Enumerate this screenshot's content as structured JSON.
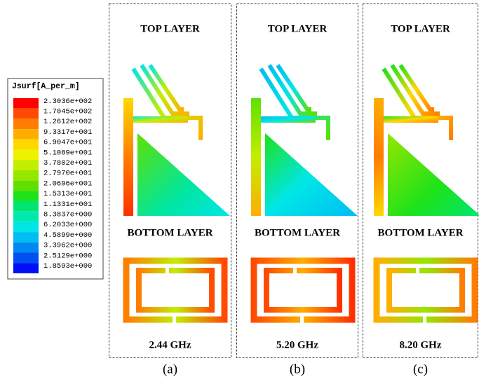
{
  "legend": {
    "title": "Jsurf[A_per_m]",
    "entries": [
      {
        "label": "2.3036e+002",
        "color": "#ff0000"
      },
      {
        "label": "1.7045e+002",
        "color": "#ff4a00"
      },
      {
        "label": "1.2612e+002",
        "color": "#ff7d00"
      },
      {
        "label": "9.3317e+001",
        "color": "#ffae00"
      },
      {
        "label": "6.9047e+001",
        "color": "#ffd800"
      },
      {
        "label": "5.1089e+001",
        "color": "#eef200"
      },
      {
        "label": "3.7802e+001",
        "color": "#c2ee00"
      },
      {
        "label": "2.7970e+001",
        "color": "#96e600"
      },
      {
        "label": "2.0696e+001",
        "color": "#5fe000"
      },
      {
        "label": "1.5313e+001",
        "color": "#1ee21a"
      },
      {
        "label": "1.1331e+001",
        "color": "#00e670"
      },
      {
        "label": "8.3837e+000",
        "color": "#00eab0"
      },
      {
        "label": "6.2033e+000",
        "color": "#00e6e6"
      },
      {
        "label": "4.5899e+000",
        "color": "#00bdf2"
      },
      {
        "label": "3.3962e+000",
        "color": "#0088f2"
      },
      {
        "label": "2.5129e+000",
        "color": "#0050f2"
      },
      {
        "label": "1.8593e+000",
        "color": "#0010f6"
      }
    ]
  },
  "panels": [
    {
      "top_label": "TOP LAYER",
      "bottom_label": "BOTTOM LAYER",
      "frequency": "2.44 GHz",
      "caption": "(a)"
    },
    {
      "top_label": "TOP LAYER",
      "bottom_label": "BOTTOM LAYER",
      "frequency": "5.20 GHz",
      "caption": "(b)"
    },
    {
      "top_label": "TOP LAYER",
      "bottom_label": "BOTTOM LAYER",
      "frequency": "8.20 GHz",
      "caption": "(c)"
    }
  ]
}
